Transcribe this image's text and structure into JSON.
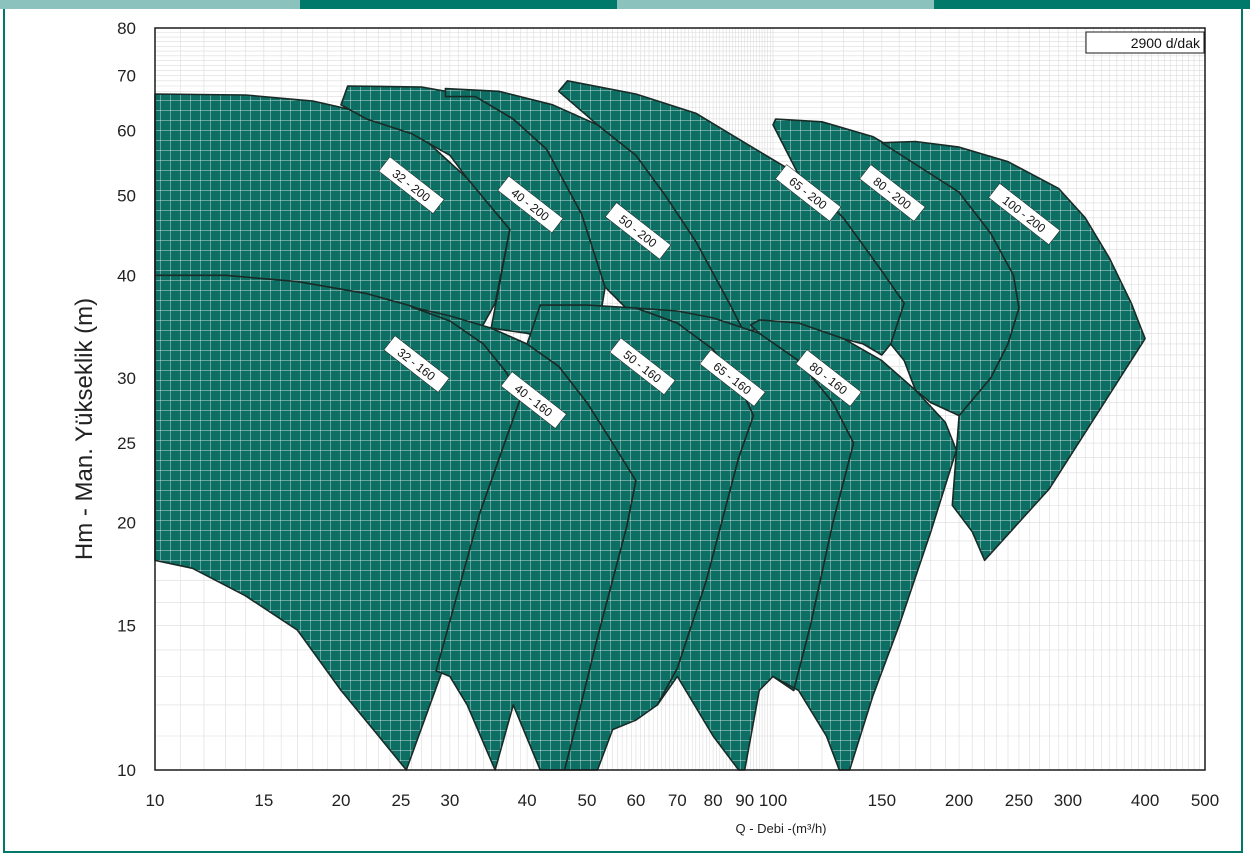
{
  "colors": {
    "accent": "#00786a",
    "accent_light": "#8cc2bd",
    "region_fill": "#0d6f63",
    "region_stroke": "#1a2b27",
    "grid": "#dcdcdc"
  },
  "chart_data": {
    "type": "area",
    "title": "",
    "speed_label": "2900 d/dak",
    "xlabel": "Q - Debi -(m³/h)",
    "ylabel": "Hm - Man. Yükseklik (m)",
    "xscale": "log",
    "yscale": "log",
    "xlim": [
      10,
      500
    ],
    "ylim": [
      10,
      80
    ],
    "x_ticks": [
      10,
      15,
      20,
      25,
      30,
      40,
      50,
      60,
      70,
      80,
      90,
      100,
      150,
      200,
      250,
      300,
      400,
      500
    ],
    "y_ticks": [
      10,
      15,
      20,
      25,
      30,
      40,
      50,
      60,
      70,
      80
    ],
    "grid": true,
    "series": [
      {
        "name": "32 - 200",
        "label_pos": [
          26,
          51.5
        ],
        "points": [
          [
            10,
            66.5
          ],
          [
            14,
            66.3
          ],
          [
            18,
            65.2
          ],
          [
            22,
            63
          ],
          [
            27,
            59
          ],
          [
            32,
            52.5
          ],
          [
            37.5,
            45.5
          ],
          [
            35.5,
            37
          ],
          [
            33,
            33.5
          ],
          [
            30,
            34
          ],
          [
            24,
            37
          ],
          [
            18,
            39
          ],
          [
            13,
            40
          ],
          [
            10,
            40
          ]
        ]
      },
      {
        "name": "40 - 200",
        "label_pos": [
          40.5,
          48.8
        ],
        "points": [
          [
            20,
            64.5
          ],
          [
            20.5,
            68
          ],
          [
            27,
            67.8
          ],
          [
            33,
            66
          ],
          [
            38,
            62
          ],
          [
            43,
            57
          ],
          [
            49,
            47.5
          ],
          [
            53.5,
            38.7
          ],
          [
            52,
            34
          ],
          [
            46,
            33
          ],
          [
            40,
            34
          ],
          [
            35,
            34.5
          ],
          [
            37.5,
            45.5
          ],
          [
            32,
            52.5
          ],
          [
            30,
            56
          ],
          [
            26,
            59.5
          ],
          [
            22,
            62
          ]
        ]
      },
      {
        "name": "50 - 200",
        "label_pos": [
          60.5,
          45.3
        ],
        "points": [
          [
            29.5,
            66
          ],
          [
            29.5,
            67.5
          ],
          [
            36,
            67
          ],
          [
            44,
            64.5
          ],
          [
            52,
            61
          ],
          [
            60,
            56
          ],
          [
            67,
            50
          ],
          [
            75,
            44
          ],
          [
            85,
            37
          ],
          [
            90,
            34
          ],
          [
            80,
            35
          ],
          [
            70,
            35
          ],
          [
            60,
            35.5
          ],
          [
            53.5,
            38.7
          ],
          [
            49,
            47.5
          ],
          [
            43,
            57
          ],
          [
            38,
            62
          ],
          [
            33,
            66
          ]
        ]
      },
      {
        "name": "65 - 200",
        "label_pos": [
          114,
          50.4
        ],
        "points": [
          [
            45,
            67
          ],
          [
            46.5,
            69
          ],
          [
            60,
            66.5
          ],
          [
            75,
            63
          ],
          [
            90,
            58
          ],
          [
            110,
            53
          ],
          [
            130,
            47
          ],
          [
            150,
            40.5
          ],
          [
            163,
            37
          ],
          [
            155,
            33
          ],
          [
            150,
            32
          ],
          [
            140,
            33
          ],
          [
            120,
            34
          ],
          [
            100,
            35
          ],
          [
            90,
            34
          ],
          [
            85,
            37
          ],
          [
            75,
            44
          ],
          [
            67,
            50
          ],
          [
            60,
            56
          ],
          [
            52,
            61
          ]
        ]
      },
      {
        "name": "80 - 200",
        "label_pos": [
          156,
          50.4
        ],
        "points": [
          [
            100,
            61
          ],
          [
            101,
            62
          ],
          [
            120,
            61.5
          ],
          [
            145,
            59
          ],
          [
            170,
            55
          ],
          [
            200,
            50.5
          ],
          [
            225,
            45
          ],
          [
            245,
            40
          ],
          [
            250,
            36.5
          ],
          [
            240,
            33
          ],
          [
            225,
            30
          ],
          [
            200,
            27
          ],
          [
            180,
            28
          ],
          [
            170,
            29
          ],
          [
            163,
            31.5
          ],
          [
            155,
            33
          ],
          [
            163,
            37
          ],
          [
            150,
            40.5
          ],
          [
            130,
            47
          ],
          [
            110,
            53
          ]
        ]
      },
      {
        "name": "100 - 200",
        "label_pos": [
          255,
          47.5
        ],
        "points": [
          [
            150,
            58
          ],
          [
            170,
            58.2
          ],
          [
            200,
            57.3
          ],
          [
            240,
            55
          ],
          [
            290,
            51
          ],
          [
            320,
            47
          ],
          [
            350,
            42
          ],
          [
            380,
            37
          ],
          [
            400,
            33.5
          ],
          [
            280,
            22
          ],
          [
            220,
            18
          ],
          [
            210,
            19.5
          ],
          [
            195,
            21
          ],
          [
            200,
            27
          ],
          [
            225,
            30
          ],
          [
            240,
            33
          ],
          [
            250,
            36.5
          ],
          [
            245,
            40
          ],
          [
            225,
            45
          ],
          [
            200,
            50.5
          ]
        ]
      },
      {
        "name": "32 - 160",
        "label_pos": [
          26.5,
          31.2
        ],
        "points": [
          [
            10,
            40
          ],
          [
            13,
            40
          ],
          [
            17,
            39.3
          ],
          [
            22,
            38
          ],
          [
            26,
            36.7
          ],
          [
            30,
            35.2
          ],
          [
            34,
            33
          ],
          [
            37,
            30.5
          ],
          [
            39,
            28.3
          ],
          [
            33.5,
            20.5
          ],
          [
            30,
            14
          ],
          [
            25.5,
            10
          ],
          [
            23,
            11
          ],
          [
            20,
            12.5
          ],
          [
            17,
            14.8
          ],
          [
            14,
            16.3
          ],
          [
            11.5,
            17.6
          ],
          [
            10,
            18
          ]
        ]
      },
      {
        "name": "40 - 160",
        "label_pos": [
          41,
          28.2
        ],
        "points": [
          [
            26,
            36.6
          ],
          [
            30,
            35.7
          ],
          [
            35,
            34.5
          ],
          [
            40,
            33
          ],
          [
            45,
            31
          ],
          [
            50,
            28
          ],
          [
            55,
            25
          ],
          [
            60,
            22.5
          ],
          [
            58,
            19.8
          ],
          [
            52,
            14.5
          ],
          [
            47.5,
            11
          ],
          [
            46,
            10
          ],
          [
            44.5,
            10
          ],
          [
            42,
            10
          ],
          [
            38,
            12
          ],
          [
            35.5,
            10
          ],
          [
            32,
            12
          ],
          [
            30,
            13
          ],
          [
            28.5,
            13.2
          ],
          [
            33.5,
            20.5
          ],
          [
            39,
            28.3
          ],
          [
            37,
            30.5
          ],
          [
            34,
            33
          ],
          [
            30,
            35.2
          ]
        ]
      },
      {
        "name": "50 - 160",
        "label_pos": [
          61.5,
          31
        ],
        "points": [
          [
            40,
            33
          ],
          [
            42,
            36.8
          ],
          [
            50,
            36.8
          ],
          [
            60,
            36.5
          ],
          [
            70,
            35
          ],
          [
            80,
            32.5
          ],
          [
            88,
            29.5
          ],
          [
            93,
            27
          ],
          [
            88,
            24
          ],
          [
            78,
            17
          ],
          [
            70,
            13.3
          ],
          [
            65,
            12
          ],
          [
            60,
            11.5
          ],
          [
            55,
            11.2
          ],
          [
            52,
            10
          ],
          [
            48,
            10
          ],
          [
            46,
            10
          ],
          [
            47.5,
            11
          ],
          [
            52,
            14.5
          ],
          [
            58,
            19.8
          ],
          [
            60,
            22.5
          ],
          [
            55,
            25
          ],
          [
            50,
            28
          ],
          [
            45,
            31
          ]
        ]
      },
      {
        "name": "65 - 160",
        "label_pos": [
          86,
          30
        ],
        "points": [
          [
            60,
            36.5
          ],
          [
            70,
            36.2
          ],
          [
            80,
            35.5
          ],
          [
            95,
            34
          ],
          [
            110,
            31.5
          ],
          [
            125,
            28
          ],
          [
            135,
            25
          ],
          [
            125,
            20
          ],
          [
            115,
            15
          ],
          [
            108,
            12.5
          ],
          [
            100,
            13
          ],
          [
            95,
            12.5
          ],
          [
            90,
            10
          ],
          [
            88,
            10
          ],
          [
            80,
            11
          ],
          [
            70,
            13
          ],
          [
            65,
            12
          ],
          [
            70,
            13.3
          ],
          [
            78,
            17
          ],
          [
            88,
            24
          ],
          [
            93,
            27
          ],
          [
            88,
            29.5
          ],
          [
            80,
            32.5
          ],
          [
            70,
            35
          ]
        ]
      },
      {
        "name": "80 - 160",
        "label_pos": [
          123,
          30
        ],
        "points": [
          [
            92,
            34.8
          ],
          [
            95,
            35.3
          ],
          [
            110,
            35
          ],
          [
            130,
            33.5
          ],
          [
            150,
            31.5
          ],
          [
            170,
            29
          ],
          [
            190,
            26.5
          ],
          [
            198,
            24.5
          ],
          [
            180,
            19.5
          ],
          [
            160,
            15
          ],
          [
            145,
            12.3
          ],
          [
            133,
            10
          ],
          [
            128,
            10
          ],
          [
            122,
            11
          ],
          [
            110,
            12.5
          ],
          [
            100,
            13
          ],
          [
            108,
            12.5
          ],
          [
            115,
            15
          ],
          [
            125,
            20
          ],
          [
            135,
            25
          ],
          [
            125,
            28
          ],
          [
            110,
            31.5
          ],
          [
            95,
            34
          ]
        ]
      }
    ]
  }
}
